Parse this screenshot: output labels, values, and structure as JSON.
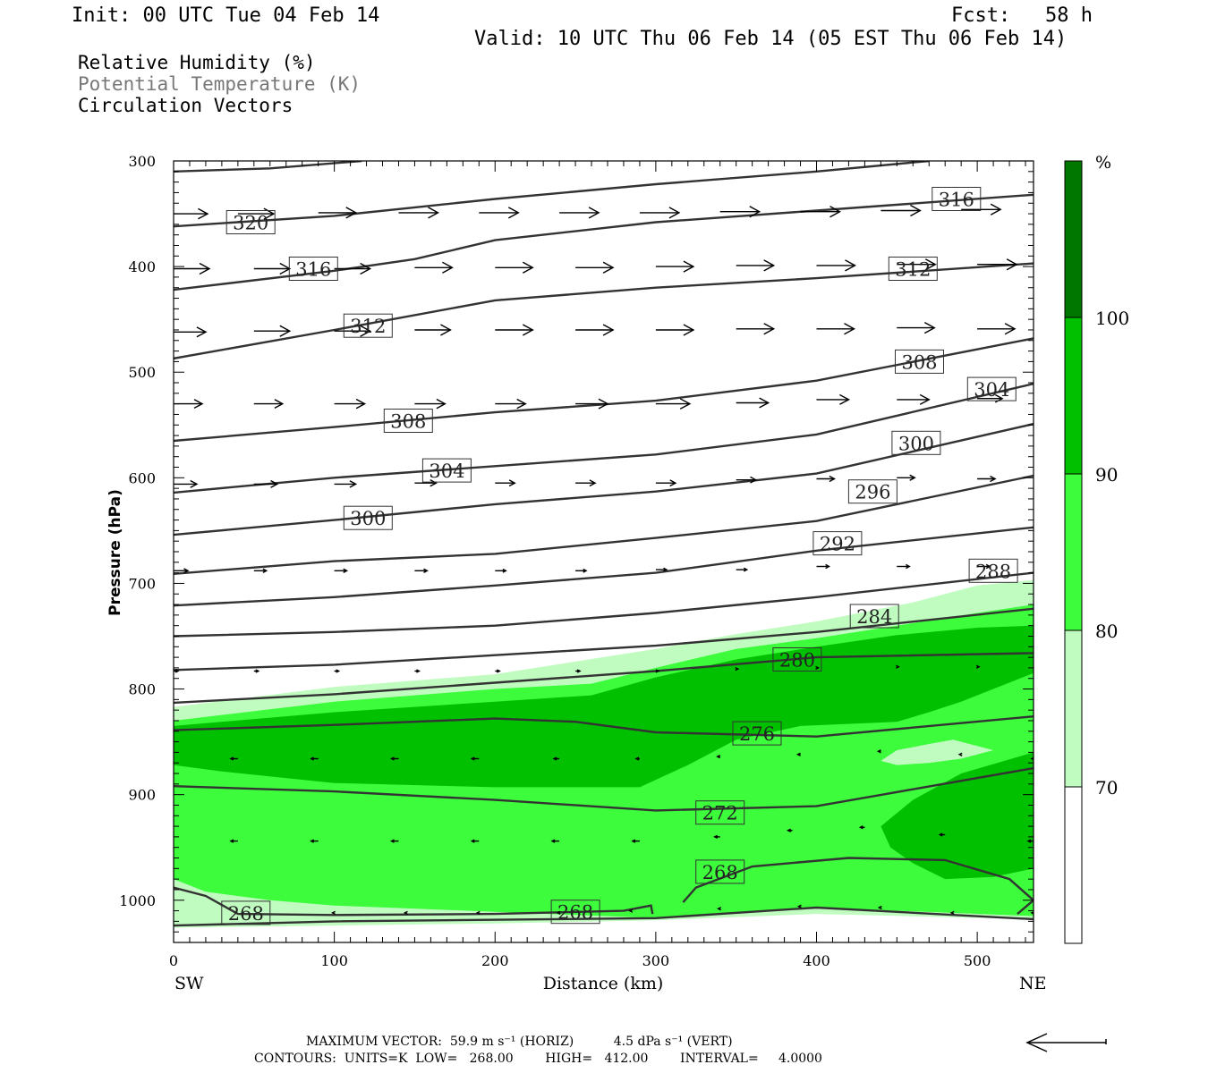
{
  "header": {
    "init": "Init: 00 UTC Tue 04 Feb 14",
    "fcst_label": "Fcst:",
    "fcst_value": "58 h",
    "valid": "Valid: 10 UTC Thu 06 Feb 14 (05 EST Thu 06 Feb 14)"
  },
  "fields": {
    "rh": "Relative Humidity (%)",
    "theta": "Potential Temperature (K)",
    "vectors": "Circulation Vectors"
  },
  "footer": {
    "max_vector": "MAXIMUM VECTOR:  59.9 m s⁻¹ (HORIZ)          4.5 dPa s⁻¹ (VERT)",
    "contours": "CONTOURS:  UNITS=K  LOW=   268.00        HIGH=   412.00        INTERVAL=     4.0000"
  },
  "colors": {
    "rh70": "#c0fcc0",
    "rh80": "#3cfc3c",
    "rh90": "#00c000",
    "rh100": "#007800",
    "contour": "#333333"
  },
  "chart_data": {
    "type": "cross-section",
    "xlabel": "Distance (km)",
    "ylabel": "Pressure (hPa)",
    "xlim": [
      0,
      535
    ],
    "ylim": [
      1040,
      300
    ],
    "x_ticks": [
      "0",
      "100",
      "200",
      "300",
      "400",
      "500"
    ],
    "y_ticks": [
      "300",
      "400",
      "500",
      "600",
      "700",
      "800",
      "900",
      "1000"
    ],
    "x_end_labels": {
      "left": "SW",
      "right": "NE"
    },
    "colorbar": {
      "unit": "%",
      "levels": [
        "70",
        "80",
        "90",
        "100"
      ]
    },
    "contour_labels": [
      {
        "text": "320",
        "x": 48,
        "p": 358
      },
      {
        "text": "316",
        "x": 487,
        "p": 336
      },
      {
        "text": "316",
        "x": 87,
        "p": 402
      },
      {
        "text": "312",
        "x": 460,
        "p": 402
      },
      {
        "text": "312",
        "x": 121,
        "p": 456
      },
      {
        "text": "308",
        "x": 464,
        "p": 490
      },
      {
        "text": "304",
        "x": 509,
        "p": 516
      },
      {
        "text": "308",
        "x": 146,
        "p": 546
      },
      {
        "text": "300",
        "x": 462,
        "p": 567
      },
      {
        "text": "304",
        "x": 170,
        "p": 593
      },
      {
        "text": "296",
        "x": 435,
        "p": 613
      },
      {
        "text": "300",
        "x": 121,
        "p": 638
      },
      {
        "text": "292",
        "x": 413,
        "p": 662
      },
      {
        "text": "288",
        "x": 510,
        "p": 688
      },
      {
        "text": "284",
        "x": 436,
        "p": 731
      },
      {
        "text": "280",
        "x": 388,
        "p": 772
      },
      {
        "text": "276",
        "x": 363,
        "p": 842
      },
      {
        "text": "272",
        "x": 340,
        "p": 917
      },
      {
        "text": "268",
        "x": 340,
        "p": 973
      },
      {
        "text": "268",
        "x": 45,
        "p": 1012
      },
      {
        "text": "268",
        "x": 250,
        "p": 1011
      }
    ],
    "isentropes": [
      [
        [
          0,
          310
        ],
        [
          60,
          307
        ],
        [
          117,
          300
        ]
      ],
      [
        [
          0,
          362
        ],
        [
          100,
          352
        ],
        [
          200,
          336
        ],
        [
          300,
          322
        ],
        [
          400,
          310
        ],
        [
          470,
          300
        ]
      ],
      [
        [
          0,
          422
        ],
        [
          100,
          404
        ],
        [
          150,
          393
        ],
        [
          200,
          375
        ],
        [
          300,
          358
        ],
        [
          400,
          347
        ],
        [
          535,
          332
        ]
      ],
      [
        [
          0,
          487
        ],
        [
          100,
          460
        ],
        [
          200,
          432
        ],
        [
          300,
          420
        ],
        [
          400,
          411
        ],
        [
          535,
          397
        ]
      ],
      [
        [
          0,
          565
        ],
        [
          100,
          552
        ],
        [
          200,
          538
        ],
        [
          300,
          527
        ],
        [
          400,
          508
        ],
        [
          535,
          468
        ]
      ],
      [
        [
          0,
          614
        ],
        [
          100,
          600
        ],
        [
          200,
          589
        ],
        [
          300,
          578
        ],
        [
          400,
          559
        ],
        [
          535,
          511
        ]
      ],
      [
        [
          0,
          654
        ],
        [
          100,
          640
        ],
        [
          200,
          625
        ],
        [
          300,
          613
        ],
        [
          400,
          596
        ],
        [
          535,
          549
        ]
      ],
      [
        [
          0,
          691
        ],
        [
          100,
          679
        ],
        [
          200,
          672
        ],
        [
          300,
          657
        ],
        [
          400,
          641
        ],
        [
          535,
          598
        ]
      ],
      [
        [
          0,
          721
        ],
        [
          100,
          713
        ],
        [
          200,
          702
        ],
        [
          300,
          690
        ],
        [
          400,
          669
        ],
        [
          535,
          647
        ]
      ],
      [
        [
          0,
          750
        ],
        [
          100,
          746
        ],
        [
          200,
          740
        ],
        [
          300,
          728
        ],
        [
          400,
          713
        ],
        [
          535,
          690
        ]
      ],
      [
        [
          0,
          782
        ],
        [
          100,
          777
        ],
        [
          200,
          768
        ],
        [
          300,
          759
        ],
        [
          400,
          746
        ],
        [
          535,
          724
        ]
      ],
      [
        [
          0,
          813
        ],
        [
          100,
          805
        ],
        [
          200,
          794
        ],
        [
          300,
          783
        ],
        [
          400,
          770
        ],
        [
          535,
          766
        ]
      ],
      [
        [
          0,
          839
        ],
        [
          100,
          834
        ],
        [
          200,
          828
        ],
        [
          250,
          831
        ],
        [
          300,
          841
        ],
        [
          400,
          845
        ],
        [
          535,
          826
        ]
      ],
      [
        [
          0,
          892
        ],
        [
          100,
          897
        ],
        [
          200,
          905
        ],
        [
          300,
          915
        ],
        [
          400,
          911
        ],
        [
          460,
          895
        ],
        [
          535,
          875
        ]
      ],
      [
        [
          317,
          1002
        ],
        [
          325,
          988
        ],
        [
          360,
          968
        ],
        [
          420,
          960
        ],
        [
          480,
          962
        ],
        [
          520,
          980
        ],
        [
          535,
          1000
        ],
        [
          525,
          1013
        ]
      ],
      [
        [
          0,
          988
        ],
        [
          20,
          996
        ],
        [
          40,
          1013
        ],
        [
          100,
          1014
        ],
        [
          200,
          1013
        ],
        [
          280,
          1010
        ],
        [
          297,
          1005
        ],
        [
          298,
          1013
        ]
      ],
      [
        [
          0,
          1024
        ],
        [
          100,
          1020
        ],
        [
          300,
          1017
        ],
        [
          400,
          1007
        ],
        [
          535,
          1018
        ]
      ]
    ],
    "rh70_region": [
      [
        0,
        817
      ],
      [
        100,
        798
      ],
      [
        200,
        786
      ],
      [
        300,
        762
      ],
      [
        350,
        748
      ],
      [
        400,
        736
      ],
      [
        460,
        718
      ],
      [
        500,
        702
      ],
      [
        535,
        697
      ],
      [
        535,
        1018
      ],
      [
        400,
        1013
      ],
      [
        300,
        1019
      ],
      [
        200,
        1022
      ],
      [
        100,
        1024
      ],
      [
        0,
        1026
      ]
    ],
    "rh80_region": [
      [
        0,
        830
      ],
      [
        100,
        812
      ],
      [
        200,
        800
      ],
      [
        260,
        795
      ],
      [
        300,
        780
      ],
      [
        350,
        762
      ],
      [
        400,
        752
      ],
      [
        450,
        740
      ],
      [
        500,
        728
      ],
      [
        535,
        720
      ],
      [
        535,
        1015
      ],
      [
        400,
        1007
      ],
      [
        300,
        1017
      ],
      [
        200,
        1011
      ],
      [
        100,
        1005
      ],
      [
        60,
        1000
      ],
      [
        20,
        992
      ],
      [
        0,
        980
      ]
    ],
    "rh90_regions": [
      [
        [
          0,
          835
        ],
        [
          100,
          822
        ],
        [
          200,
          812
        ],
        [
          260,
          806
        ],
        [
          300,
          789
        ],
        [
          350,
          772
        ],
        [
          400,
          760
        ],
        [
          450,
          749
        ],
        [
          500,
          742
        ],
        [
          535,
          740
        ],
        [
          535,
          785
        ],
        [
          510,
          800
        ],
        [
          490,
          812
        ],
        [
          470,
          822
        ],
        [
          450,
          831
        ],
        [
          390,
          835
        ],
        [
          350,
          848
        ],
        [
          320,
          872
        ],
        [
          290,
          893
        ],
        [
          200,
          893
        ],
        [
          100,
          889
        ],
        [
          30,
          878
        ],
        [
          0,
          872
        ]
      ],
      [
        [
          535,
          860
        ],
        [
          490,
          880
        ],
        [
          460,
          905
        ],
        [
          440,
          930
        ],
        [
          446,
          950
        ],
        [
          460,
          965
        ],
        [
          480,
          980
        ],
        [
          510,
          978
        ],
        [
          535,
          970
        ]
      ]
    ],
    "rh70_hole": [
      [
        440,
        868
      ],
      [
        450,
        858
      ],
      [
        470,
        852
      ],
      [
        485,
        848
      ],
      [
        510,
        858
      ],
      [
        490,
        866
      ],
      [
        470,
        870
      ],
      [
        450,
        872
      ]
    ],
    "vectors": [
      [
        [
          0,
          350,
          38
        ],
        [
          40,
          350,
          40
        ],
        [
          90,
          349,
          42
        ],
        [
          140,
          349,
          44
        ],
        [
          190,
          349,
          44
        ],
        [
          240,
          349,
          44
        ],
        [
          290,
          349,
          44
        ],
        [
          340,
          348,
          44
        ],
        [
          390,
          348,
          44
        ],
        [
          440,
          347,
          44
        ],
        [
          490,
          346,
          44
        ]
      ],
      [
        [
          0,
          402,
          40
        ],
        [
          50,
          402,
          40
        ],
        [
          100,
          402,
          40
        ],
        [
          150,
          401,
          42
        ],
        [
          200,
          401,
          42
        ],
        [
          250,
          401,
          42
        ],
        [
          300,
          400,
          42
        ],
        [
          350,
          399,
          42
        ],
        [
          400,
          399,
          43
        ],
        [
          450,
          398,
          43
        ],
        [
          500,
          398,
          44
        ]
      ],
      [
        [
          0,
          462,
          36
        ],
        [
          50,
          461,
          40
        ],
        [
          100,
          461,
          40
        ],
        [
          150,
          460,
          40
        ],
        [
          200,
          460,
          42
        ],
        [
          250,
          460,
          42
        ],
        [
          300,
          460,
          42
        ],
        [
          350,
          459,
          42
        ],
        [
          400,
          459,
          42
        ],
        [
          450,
          458,
          42
        ],
        [
          500,
          459,
          42
        ]
      ],
      [
        [
          0,
          530,
          32
        ],
        [
          50,
          530,
          32
        ],
        [
          100,
          530,
          34
        ],
        [
          150,
          530,
          34
        ],
        [
          200,
          530,
          34
        ],
        [
          250,
          530,
          36
        ],
        [
          300,
          530,
          38
        ],
        [
          350,
          529,
          36
        ],
        [
          400,
          526,
          36
        ],
        [
          450,
          526,
          36
        ],
        [
          500,
          525,
          28
        ]
      ],
      [
        [
          0,
          606,
          26
        ],
        [
          50,
          606,
          26
        ],
        [
          100,
          606,
          24
        ],
        [
          150,
          605,
          24
        ],
        [
          200,
          605,
          22
        ],
        [
          250,
          605,
          22
        ],
        [
          300,
          605,
          22
        ],
        [
          350,
          602,
          22
        ],
        [
          400,
          601,
          20
        ],
        [
          450,
          600,
          20
        ],
        [
          500,
          601,
          20
        ]
      ],
      [
        [
          0,
          688,
          16
        ],
        [
          50,
          688,
          14
        ],
        [
          100,
          688,
          14
        ],
        [
          150,
          688,
          14
        ],
        [
          200,
          688,
          12
        ],
        [
          250,
          688,
          12
        ],
        [
          300,
          687,
          12
        ],
        [
          350,
          687,
          12
        ],
        [
          400,
          684,
          14
        ],
        [
          450,
          684,
          14
        ],
        [
          500,
          684,
          14
        ]
      ],
      [
        [
          0,
          783,
          5
        ],
        [
          50,
          783,
          5
        ],
        [
          100,
          783,
          5
        ],
        [
          150,
          783,
          5
        ],
        [
          200,
          783,
          5
        ],
        [
          250,
          783,
          5
        ],
        [
          300,
          783,
          3
        ],
        [
          350,
          781,
          2
        ],
        [
          400,
          780,
          2
        ],
        [
          450,
          779,
          2
        ],
        [
          500,
          779,
          2
        ]
      ],
      [
        [
          40,
          866,
          -8
        ],
        [
          90,
          866,
          -8
        ],
        [
          140,
          866,
          -8
        ],
        [
          190,
          866,
          -8
        ],
        [
          240,
          866,
          -6
        ],
        [
          290,
          866,
          -4
        ],
        [
          340,
          864,
          -3
        ],
        [
          390,
          862,
          -3
        ],
        [
          440,
          859,
          -3
        ],
        [
          490,
          862,
          -2
        ],
        [
          535,
          866,
          -2
        ]
      ],
      [
        [
          40,
          944,
          -8
        ],
        [
          90,
          944,
          -8
        ],
        [
          140,
          944,
          -8
        ],
        [
          190,
          944,
          -8
        ],
        [
          240,
          944,
          -8
        ],
        [
          290,
          944,
          -8
        ],
        [
          340,
          940,
          -6
        ],
        [
          385,
          934,
          -5
        ],
        [
          430,
          931,
          -5
        ],
        [
          480,
          938,
          -6
        ],
        [
          535,
          944,
          -6
        ]
      ],
      [
        [
          100,
          1012,
          -2
        ],
        [
          145,
          1012,
          -2
        ],
        [
          190,
          1012,
          -2
        ],
        [
          240,
          1012,
          -2
        ],
        [
          285,
          1010,
          -2
        ],
        [
          340,
          1008,
          -2
        ],
        [
          390,
          1006,
          -2
        ],
        [
          440,
          1007,
          -2
        ],
        [
          485,
          1012,
          -2
        ],
        [
          535,
          1012,
          -2
        ]
      ]
    ]
  }
}
